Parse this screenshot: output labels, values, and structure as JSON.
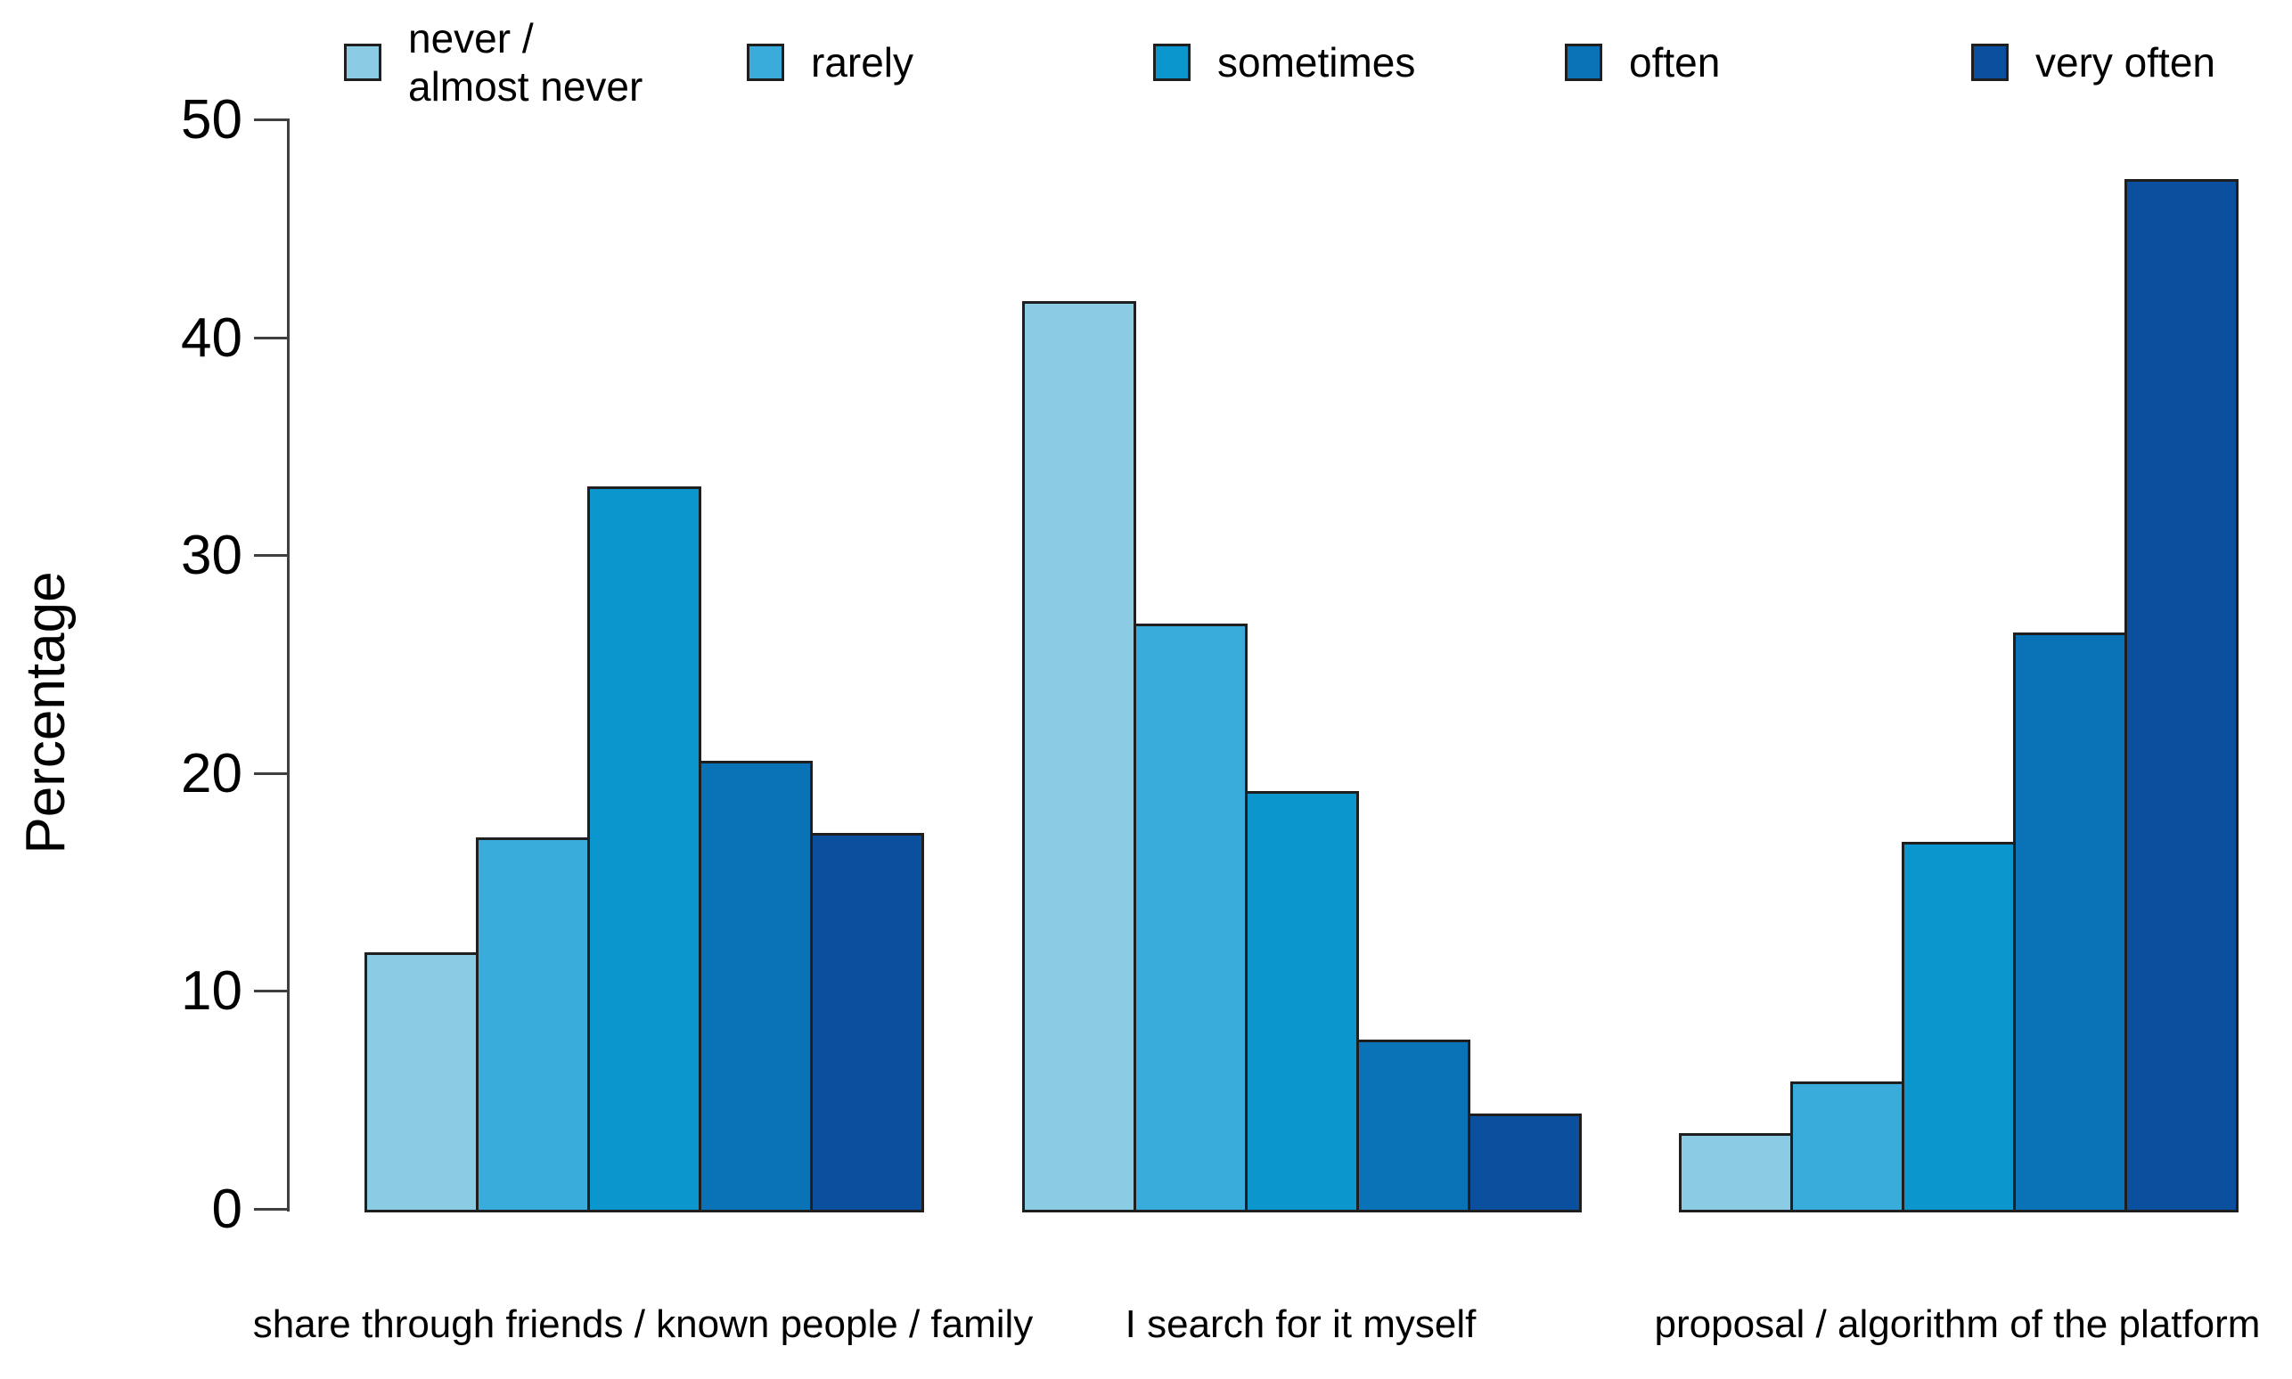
{
  "chart_data": {
    "type": "bar",
    "title": "",
    "xlabel": "",
    "ylabel": "Percentage",
    "ylim": [
      0,
      50
    ],
    "yticks": [
      0,
      10,
      20,
      30,
      40,
      50
    ],
    "grid": false,
    "legend_position": "top",
    "categories": [
      "share through friends / known people / family",
      "I search for it myself",
      "proposal / algorithm of the platform"
    ],
    "series": [
      {
        "name": "never / almost never",
        "color": "#8ccbe4",
        "values": [
          11.8,
          41.7,
          3.5
        ]
      },
      {
        "name": "rarely",
        "color": "#39acdb",
        "values": [
          17.1,
          26.9,
          5.9
        ]
      },
      {
        "name": "sometimes",
        "color": "#0b96cd",
        "values": [
          33.2,
          19.2,
          16.9
        ]
      },
      {
        "name": "often",
        "color": "#0a73b8",
        "values": [
          20.6,
          7.8,
          26.5
        ]
      },
      {
        "name": "very often",
        "color": "#0b509f",
        "values": [
          17.3,
          4.4,
          47.3
        ]
      }
    ],
    "legend_labels": [
      "never /\nalmost never",
      "rarely",
      "sometimes",
      "often",
      "very often"
    ],
    "axis_color": "#3f3f3f",
    "bar_border_color": "#1f1f1f",
    "text_color": "#000000"
  }
}
